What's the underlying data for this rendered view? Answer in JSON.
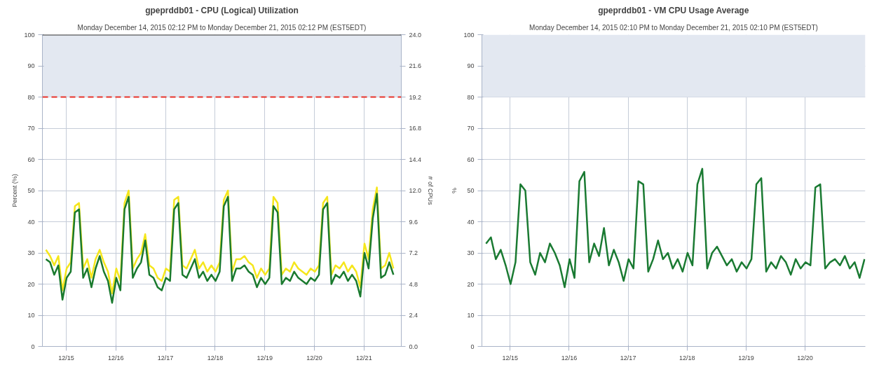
{
  "chart_data": [
    {
      "type": "line",
      "title": "gpeprddb01 - CPU (Logical) Utilization",
      "subtitle": "Monday December 14, 2015 02:12 PM to Monday December 21, 2015 02:12 PM (EST5EDT)",
      "ylabel": "Percent (%)",
      "y2label": "# of CPUs",
      "x": [
        "2015-12-14T14:12",
        "2015-12-14T16:12",
        "2015-12-14T18:12",
        "2015-12-14T20:12",
        "2015-12-14T22:12",
        "2015-12-15T00:12",
        "2015-12-15T02:12",
        "2015-12-15T04:12",
        "2015-12-15T06:12",
        "2015-12-15T08:12",
        "2015-12-15T10:12",
        "2015-12-15T12:12",
        "2015-12-15T14:12",
        "2015-12-15T16:12",
        "2015-12-15T18:12",
        "2015-12-15T20:12",
        "2015-12-15T22:12",
        "2015-12-16T00:12",
        "2015-12-16T02:12",
        "2015-12-16T04:12",
        "2015-12-16T06:12",
        "2015-12-16T08:12",
        "2015-12-16T10:12",
        "2015-12-16T12:12",
        "2015-12-16T14:12",
        "2015-12-16T16:12",
        "2015-12-16T18:12",
        "2015-12-16T20:12",
        "2015-12-16T22:12",
        "2015-12-17T00:12",
        "2015-12-17T02:12",
        "2015-12-17T04:12",
        "2015-12-17T06:12",
        "2015-12-17T08:12",
        "2015-12-17T10:12",
        "2015-12-17T12:12",
        "2015-12-17T14:12",
        "2015-12-17T16:12",
        "2015-12-17T18:12",
        "2015-12-17T20:12",
        "2015-12-17T22:12",
        "2015-12-18T00:12",
        "2015-12-18T02:12",
        "2015-12-18T04:12",
        "2015-12-18T06:12",
        "2015-12-18T08:12",
        "2015-12-18T10:12",
        "2015-12-18T12:12",
        "2015-12-18T14:12",
        "2015-12-18T16:12",
        "2015-12-18T18:12",
        "2015-12-18T20:12",
        "2015-12-18T22:12",
        "2015-12-19T00:12",
        "2015-12-19T02:12",
        "2015-12-19T04:12",
        "2015-12-19T06:12",
        "2015-12-19T08:12",
        "2015-12-19T10:12",
        "2015-12-19T12:12",
        "2015-12-19T14:12",
        "2015-12-19T16:12",
        "2015-12-19T18:12",
        "2015-12-19T20:12",
        "2015-12-19T22:12",
        "2015-12-20T00:12",
        "2015-12-20T02:12",
        "2015-12-20T04:12",
        "2015-12-20T06:12",
        "2015-12-20T08:12",
        "2015-12-20T10:12",
        "2015-12-20T12:12",
        "2015-12-20T14:12",
        "2015-12-20T16:12",
        "2015-12-20T18:12",
        "2015-12-20T20:12",
        "2015-12-20T22:12",
        "2015-12-21T00:12",
        "2015-12-21T02:12",
        "2015-12-21T04:12",
        "2015-12-21T06:12",
        "2015-12-21T08:12",
        "2015-12-21T10:12",
        "2015-12-21T12:12",
        "2015-12-21T14:12"
      ],
      "series": [
        {
          "color": "#f5e61c",
          "values": [
            31,
            29,
            26,
            29,
            18,
            25,
            27,
            45,
            46,
            25,
            28,
            22,
            28,
            31,
            27,
            24,
            17,
            25,
            21,
            46,
            50,
            25,
            28,
            30,
            36,
            26,
            25,
            22,
            21,
            25,
            24,
            47,
            48,
            26,
            25,
            28,
            31,
            25,
            27,
            24,
            26,
            24,
            27,
            47,
            50,
            24,
            28,
            28,
            29,
            27,
            26,
            22,
            25,
            23,
            25,
            48,
            46,
            23,
            25,
            24,
            27,
            25,
            24,
            23,
            25,
            24,
            26,
            46,
            48,
            23,
            26,
            25,
            27,
            24,
            26,
            24,
            19,
            33,
            28,
            44,
            51,
            25,
            26,
            30,
            25
          ]
        },
        {
          "color": "#1a7a2e",
          "values": [
            28,
            27,
            23,
            26,
            15,
            22,
            24,
            43,
            44,
            22,
            25,
            19,
            25,
            29,
            24,
            21,
            14,
            22,
            18,
            44,
            48,
            22,
            25,
            27,
            34,
            23,
            22,
            19,
            18,
            22,
            21,
            44,
            46,
            23,
            22,
            25,
            28,
            22,
            24,
            21,
            23,
            21,
            24,
            45,
            48,
            21,
            25,
            25,
            26,
            24,
            23,
            19,
            22,
            20,
            22,
            45,
            43,
            20,
            22,
            21,
            24,
            22,
            21,
            20,
            22,
            21,
            23,
            44,
            46,
            20,
            23,
            22,
            24,
            21,
            23,
            21,
            16,
            30,
            25,
            41,
            49,
            22,
            23,
            27,
            23
          ]
        }
      ],
      "xlim": [
        "2015-12-14T12:30",
        "2015-12-21T18:00"
      ],
      "xticks": [
        {
          "value": "2015-12-15",
          "label": "12/15"
        },
        {
          "value": "2015-12-16",
          "label": "12/16"
        },
        {
          "value": "2015-12-17",
          "label": "12/17"
        },
        {
          "value": "2015-12-18",
          "label": "12/18"
        },
        {
          "value": "2015-12-19",
          "label": "12/19"
        },
        {
          "value": "2015-12-20",
          "label": "12/20"
        },
        {
          "value": "2015-12-21",
          "label": "12/21"
        }
      ],
      "ylim": [
        0,
        100
      ],
      "yticks": [
        0,
        10,
        20,
        30,
        40,
        50,
        60,
        70,
        80,
        90,
        100
      ],
      "y2lim": [
        0,
        24
      ],
      "y2ticks": [
        {
          "value": 0,
          "label": "0.0"
        },
        2.4,
        4.8,
        7.2,
        9.6,
        {
          "value": 12,
          "label": "12.0"
        },
        14.4,
        16.8,
        19.2,
        21.6,
        {
          "value": 24,
          "label": "24.0"
        }
      ],
      "ref_lines": [
        {
          "axis": "y",
          "value": 80,
          "color": "#e8322a",
          "line_style": "dashed"
        },
        {
          "axis": "y",
          "value": 100,
          "color": "#333333",
          "line_style": "solid"
        }
      ],
      "bands": [
        {
          "axis": "y",
          "from": 80,
          "to": 100,
          "color": "#e3e8f1"
        }
      ],
      "grid": true,
      "marker": "none",
      "line_style": "solid"
    },
    {
      "type": "line",
      "title": "gpeprddb01 - VM CPU Usage Average",
      "subtitle": "Monday December 14, 2015 02:10 PM to Monday December 21, 2015 02:10 PM (EST5EDT)",
      "ylabel": "%",
      "x": [
        "2015-12-14T14:10",
        "2015-12-14T16:10",
        "2015-12-14T18:10",
        "2015-12-14T20:10",
        "2015-12-14T22:10",
        "2015-12-15T00:10",
        "2015-12-15T02:10",
        "2015-12-15T04:10",
        "2015-12-15T06:10",
        "2015-12-15T08:10",
        "2015-12-15T10:10",
        "2015-12-15T12:10",
        "2015-12-15T14:10",
        "2015-12-15T16:10",
        "2015-12-15T18:10",
        "2015-12-15T20:10",
        "2015-12-15T22:10",
        "2015-12-16T00:10",
        "2015-12-16T02:10",
        "2015-12-16T04:10",
        "2015-12-16T06:10",
        "2015-12-16T08:10",
        "2015-12-16T10:10",
        "2015-12-16T12:10",
        "2015-12-16T14:10",
        "2015-12-16T16:10",
        "2015-12-16T18:10",
        "2015-12-16T20:10",
        "2015-12-16T22:10",
        "2015-12-17T00:10",
        "2015-12-17T02:10",
        "2015-12-17T04:10",
        "2015-12-17T06:10",
        "2015-12-17T08:10",
        "2015-12-17T10:10",
        "2015-12-17T12:10",
        "2015-12-17T14:10",
        "2015-12-17T16:10",
        "2015-12-17T18:10",
        "2015-12-17T20:10",
        "2015-12-17T22:10",
        "2015-12-18T00:10",
        "2015-12-18T02:10",
        "2015-12-18T04:10",
        "2015-12-18T06:10",
        "2015-12-18T08:10",
        "2015-12-18T10:10",
        "2015-12-18T12:10",
        "2015-12-18T14:10",
        "2015-12-18T16:10",
        "2015-12-18T18:10",
        "2015-12-18T20:10",
        "2015-12-18T22:10",
        "2015-12-19T00:10",
        "2015-12-19T02:10",
        "2015-12-19T04:10",
        "2015-12-19T06:10",
        "2015-12-19T08:10",
        "2015-12-19T10:10",
        "2015-12-19T12:10",
        "2015-12-19T14:10",
        "2015-12-19T16:10",
        "2015-12-19T18:10",
        "2015-12-19T20:10",
        "2015-12-19T22:10",
        "2015-12-20T00:10",
        "2015-12-20T02:10",
        "2015-12-20T04:10",
        "2015-12-20T06:10",
        "2015-12-20T08:10",
        "2015-12-20T10:10",
        "2015-12-20T12:10",
        "2015-12-20T14:10",
        "2015-12-20T16:10",
        "2015-12-20T18:10",
        "2015-12-20T20:10",
        "2015-12-20T22:10",
        "2015-12-21T00:10"
      ],
      "series": [
        {
          "color": "#1a7a32",
          "values": [
            33,
            35,
            28,
            31,
            26,
            20,
            27,
            52,
            50,
            27,
            23,
            30,
            27,
            33,
            30,
            26,
            19,
            28,
            22,
            53,
            56,
            27,
            33,
            29,
            38,
            26,
            31,
            27,
            21,
            28,
            25,
            53,
            52,
            24,
            28,
            34,
            28,
            30,
            25,
            28,
            24,
            30,
            26,
            52,
            57,
            25,
            30,
            32,
            29,
            26,
            28,
            24,
            27,
            25,
            28,
            52,
            54,
            24,
            27,
            25,
            29,
            27,
            23,
            28,
            25,
            27,
            26,
            51,
            52,
            25,
            27,
            28,
            26,
            29,
            25,
            27,
            22,
            28
          ]
        }
      ],
      "xlim": [
        "2015-12-14T12:30",
        "2015-12-21T00:30"
      ],
      "xticks": [
        {
          "value": "2015-12-15",
          "label": "12/15"
        },
        {
          "value": "2015-12-16",
          "label": "12/16"
        },
        {
          "value": "2015-12-17",
          "label": "12/17"
        },
        {
          "value": "2015-12-18",
          "label": "12/18"
        },
        {
          "value": "2015-12-19",
          "label": "12/19"
        },
        {
          "value": "2015-12-20",
          "label": "12/20"
        }
      ],
      "ylim": [
        0,
        100
      ],
      "yticks": [
        0,
        10,
        20,
        30,
        40,
        50,
        60,
        70,
        80,
        90,
        100
      ],
      "bands": [
        {
          "axis": "y",
          "from": 80,
          "to": 100,
          "color": "#e3e8f1"
        }
      ],
      "grid": true,
      "marker": "none",
      "line_style": "solid"
    }
  ]
}
